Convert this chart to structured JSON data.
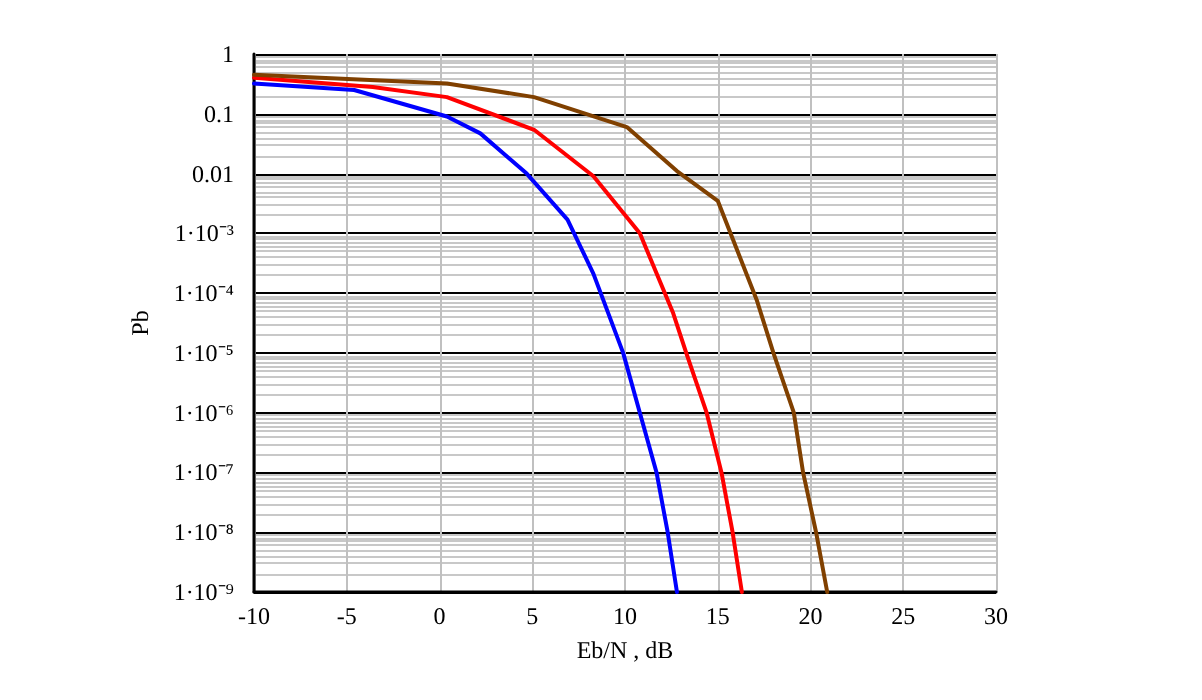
{
  "chart_data": {
    "type": "line",
    "xlabel": "Eb/N , dB",
    "ylabel": "Pb",
    "log": "y",
    "grid": true,
    "marker": "none",
    "line_style": "solid",
    "xlim": [
      -10,
      30
    ],
    "xticks": [
      -10,
      -5,
      0,
      5,
      10,
      15,
      20,
      25,
      30
    ],
    "ylim": [
      1e-09,
      1
    ],
    "yticks": [
      1,
      0.1,
      0.01,
      {
        "value": 0.001,
        "label": "1·10⁻³"
      },
      {
        "value": 0.0001,
        "label": "1·10⁻⁴"
      },
      {
        "value": 1e-05,
        "label": "1·10⁻⁵"
      },
      {
        "value": 1e-06,
        "label": "1·10⁻⁶"
      },
      {
        "value": 1e-07,
        "label": "1·10⁻⁷"
      },
      {
        "value": 1e-08,
        "label": "1·10⁻⁸"
      },
      {
        "value": 1e-09,
        "label": "1·10⁻⁹"
      }
    ],
    "series": [
      {
        "color": "#0000ff",
        "x": [
          -10,
          -4.6,
          0.4,
          2.2,
          4.7,
          6.9,
          8.3,
          9.9,
          10.8,
          11.7,
          12.3,
          12.8
        ],
        "values": [
          0.32,
          0.25,
          0.09,
          0.047,
          0.01,
          0.0017,
          0.00021,
          1e-05,
          1e-06,
          1e-07,
          1e-08,
          1e-09
        ]
      },
      {
        "color": "#ff0000",
        "x": [
          -10,
          -3.6,
          0.4,
          5.1,
          8.3,
          10.8,
          12.6,
          13.3,
          14.4,
          15.2,
          15.8,
          16.3
        ],
        "values": [
          0.4,
          0.28,
          0.19,
          0.054,
          0.009,
          0.001,
          4.6e-05,
          1e-05,
          1e-06,
          1e-07,
          1e-08,
          1e-09
        ]
      },
      {
        "color": "#804000",
        "x": [
          -10,
          0.4,
          5.1,
          10.1,
          12.8,
          15,
          17.1,
          18,
          19.1,
          19.6,
          20.3,
          20.9
        ],
        "values": [
          0.45,
          0.32,
          0.19,
          0.06,
          0.011,
          0.0035,
          7.7e-05,
          1e-05,
          1e-06,
          1e-07,
          1e-08,
          1e-09
        ]
      }
    ]
  }
}
